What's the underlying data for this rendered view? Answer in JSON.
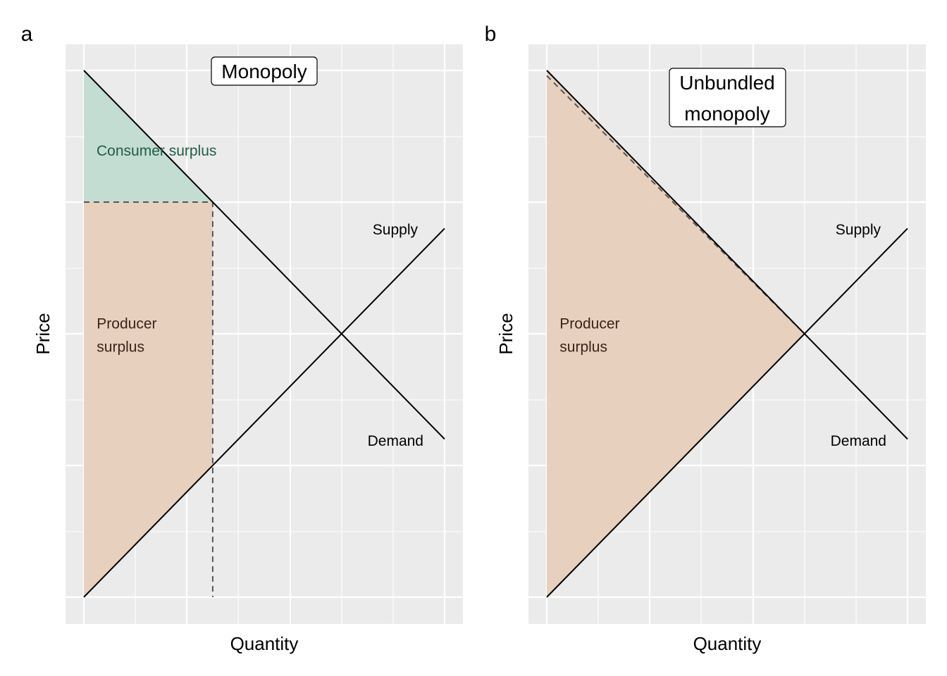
{
  "chart_data": [
    {
      "type": "area",
      "tag": "a",
      "title": "Monopoly",
      "xlabel": "Quantity",
      "ylabel": "Price",
      "xlim": [
        0,
        14
      ],
      "ylim": [
        -1,
        21
      ],
      "grid": true,
      "curves": [
        {
          "name": "Supply",
          "x": [
            0,
            14
          ],
          "y": [
            0,
            14
          ]
        },
        {
          "name": "Demand",
          "x": [
            0,
            14
          ],
          "y": [
            20,
            6
          ]
        }
      ],
      "guides": [
        {
          "x": [
            0,
            5,
            5
          ],
          "y": [
            15,
            15,
            0
          ]
        }
      ],
      "regions": [
        {
          "label": "Consumer surplus",
          "fill": "#c2dcd2",
          "x": [
            0,
            0,
            5
          ],
          "y": [
            20,
            15,
            15
          ]
        },
        {
          "label": "Producer surplus",
          "fill": "#e8cfbc",
          "x": [
            0,
            0,
            5,
            5
          ],
          "y": [
            15,
            0,
            5,
            15
          ]
        }
      ],
      "annotations": [
        {
          "text": "Consumer surplus",
          "x": 0.5,
          "y": 17
        },
        {
          "text": "Producer surplus",
          "x": 0.5,
          "y": 10.2
        },
        {
          "text": "Supply",
          "x": 13,
          "y": 14
        },
        {
          "text": "Demand",
          "x": 13,
          "y": 6
        }
      ]
    },
    {
      "type": "area",
      "tag": "b",
      "title": "Unbundled monopoly",
      "title_lines": [
        "Unbundled",
        "monopoly"
      ],
      "xlabel": "Quantity",
      "ylabel": "Price",
      "xlim": [
        0,
        14
      ],
      "ylim": [
        -1,
        21
      ],
      "grid": true,
      "curves": [
        {
          "name": "Supply",
          "x": [
            0,
            14
          ],
          "y": [
            0,
            14
          ]
        },
        {
          "name": "Demand",
          "x": [
            0,
            14
          ],
          "y": [
            20,
            6
          ]
        }
      ],
      "guides": [
        {
          "x": [
            0,
            10
          ],
          "y": [
            19.8,
            10
          ]
        }
      ],
      "regions": [
        {
          "label": "Producer surplus",
          "fill": "#e8cfbc",
          "x": [
            0,
            0,
            10
          ],
          "y": [
            20,
            0,
            10
          ]
        }
      ],
      "annotations": [
        {
          "text": "Producer surplus",
          "x": 0.5,
          "y": 10.2
        },
        {
          "text": "Supply",
          "x": 13,
          "y": 14
        },
        {
          "text": "Demand",
          "x": 13,
          "y": 6
        }
      ]
    }
  ]
}
